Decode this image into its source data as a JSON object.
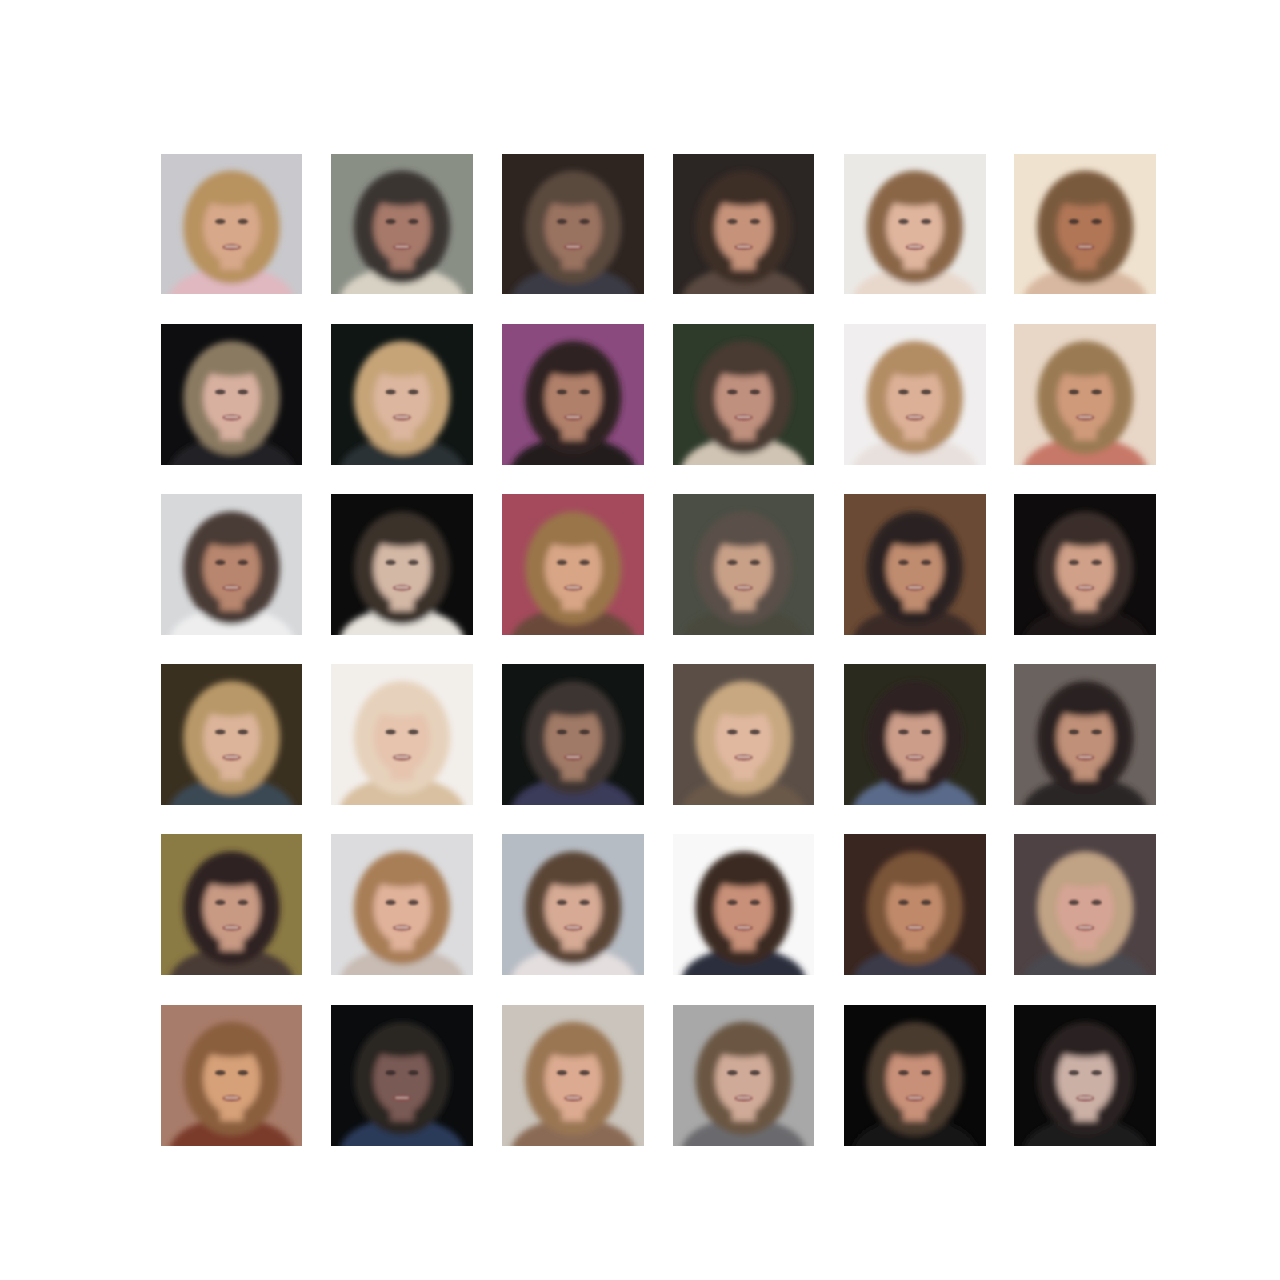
{
  "grid": {
    "rows": 6,
    "cols": 6
  },
  "tiles": [
    {
      "bg": "#c9c8cc",
      "hair": "#b8925e",
      "skin": "#d8a88a",
      "clothes": "#e0b8c0"
    },
    {
      "bg": "#8a8f86",
      "hair": "#3a3430",
      "skin": "#a6796a",
      "clothes": "#d8d2c4"
    },
    {
      "bg": "#2e2521",
      "hair": "#5a4a3e",
      "skin": "#9a7260",
      "clothes": "#3a3a44"
    },
    {
      "bg": "#2b2523",
      "hair": "#3e2e28",
      "skin": "#c6937a",
      "clothes": "#5a4a40"
    },
    {
      "bg": "#ebe9e6",
      "hair": "#8a6646",
      "skin": "#e0b59e",
      "clothes": "#e8d8cc"
    },
    {
      "bg": "#efe2cf",
      "hair": "#7a5a3e",
      "skin": "#b07656",
      "clothes": "#d8b8a0"
    },
    {
      "bg": "#0e0e10",
      "hair": "#8a7a62",
      "skin": "#d8b0a0",
      "clothes": "#202426"
    },
    {
      "bg": "#101614",
      "hair": "#c6a478",
      "skin": "#dcb69e",
      "clothes": "#2a3036"
    },
    {
      "bg": "#8a4a7e",
      "hair": "#2e2220",
      "skin": "#b0806a",
      "clothes": "#221c1c"
    },
    {
      "bg": "#2e3a2a",
      "hair": "#4a3a30",
      "skin": "#c0907e",
      "clothes": "#d0c4b4"
    },
    {
      "bg": "#f0eeee",
      "hair": "#b28c64",
      "skin": "#dcb096",
      "clothes": "#e8e0dc"
    },
    {
      "bg": "#e8d6c6",
      "hair": "#9a7a52",
      "skin": "#cf9a7a",
      "clothes": "#c87868"
    },
    {
      "bg": "#d6d8da",
      "hair": "#4a3a34",
      "skin": "#b8866e",
      "clothes": "#eeeeee"
    },
    {
      "bg": "#0c0c0c",
      "hair": "#3a302c",
      "skin": "#d4b8a6",
      "clothes": "#e8e4de"
    },
    {
      "bg": "#a44a5c",
      "hair": "#9a7448",
      "skin": "#d8a686",
      "clothes": "#6a4a3a"
    },
    {
      "bg": "#4a4e44",
      "hair": "#5a5048",
      "skin": "#c8a088",
      "clothes": "#4a4a3e"
    },
    {
      "bg": "#6a4a34",
      "hair": "#2a2224",
      "skin": "#c08c70",
      "clothes": "#3a2a26"
    },
    {
      "bg": "#0e0c0c",
      "hair": "#3a2e2a",
      "skin": "#d0a088",
      "clothes": "#1a1616"
    },
    {
      "bg": "#3a3020",
      "hair": "#b89868",
      "skin": "#dcb49a",
      "clothes": "#3a4a54"
    },
    {
      "bg": "#f2eeea",
      "hair": "#e6d2bc",
      "skin": "#e6c4ae",
      "clothes": "#d8c0a0"
    },
    {
      "bg": "#101412",
      "hair": "#3e3430",
      "skin": "#a07a66",
      "clothes": "#3a3a5a"
    },
    {
      "bg": "#5a4e46",
      "hair": "#c8a880",
      "skin": "#e0b8a0",
      "clothes": "#6a5848"
    },
    {
      "bg": "#2a2a1e",
      "hair": "#2e2420",
      "skin": "#cc9e8a",
      "clothes": "#5a6a8a"
    },
    {
      "bg": "#6a625e",
      "hair": "#2a2220",
      "skin": "#c09078",
      "clothes": "#2a2626"
    },
    {
      "bg": "#8a7a44",
      "hair": "#2e2420",
      "skin": "#c89a84",
      "clothes": "#4a3a34"
    },
    {
      "bg": "#dcdcde",
      "hair": "#a87e56",
      "skin": "#e0b29a",
      "clothes": "#c8bcb4"
    },
    {
      "bg": "#b6bcc4",
      "hair": "#5a4436",
      "skin": "#d6aa94",
      "clothes": "#e4dede"
    },
    {
      "bg": "#f8f8f8",
      "hair": "#3a2a24",
      "skin": "#c89078",
      "clothes": "#2a2e3e"
    },
    {
      "bg": "#3a2620",
      "hair": "#7a5438",
      "skin": "#c08a6a",
      "clothes": "#3a3a4a"
    },
    {
      "bg": "#4e4244",
      "hair": "#c0a284",
      "skin": "#d6a494",
      "clothes": "#4a4a50"
    },
    {
      "bg": "#a87c6a",
      "hair": "#8a5e3e",
      "skin": "#d6a078",
      "clothes": "#7a3a2a"
    },
    {
      "bg": "#0a0c0e",
      "hair": "#2a2624",
      "skin": "#7a5a54",
      "clothes": "#2a3a5a"
    },
    {
      "bg": "#cac4bc",
      "hair": "#9a7652",
      "skin": "#dcaa90",
      "clothes": "#8a6a54"
    },
    {
      "bg": "#a8a8a8",
      "hair": "#6a5642",
      "skin": "#d0aa98",
      "clothes": "#6a6a6e"
    },
    {
      "bg": "#080808",
      "hair": "#4a3a2e",
      "skin": "#c89078",
      "clothes": "#141416"
    },
    {
      "bg": "#0a0a0a",
      "hair": "#2a2220",
      "skin": "#cbb0a6",
      "clothes": "#1a1a1e"
    }
  ]
}
